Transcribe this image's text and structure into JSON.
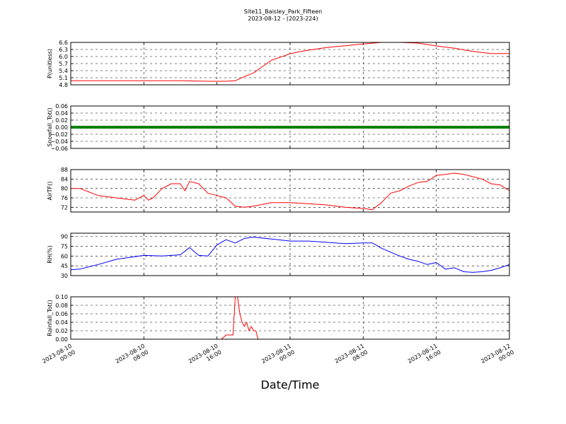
{
  "chart_data": {
    "type": "line",
    "title": [
      "Site11_Baisley_Park_Fifteen",
      "2023-08-12 - (2023-224)"
    ],
    "xlabel": "Date/Time",
    "x_range": [
      "2023-08-10 00:00",
      "2023-08-12 00:00"
    ],
    "x_ticks": [
      {
        "value": "2023-08-10 00:00",
        "label": [
          "2023-08-10",
          "00:00"
        ]
      },
      {
        "value": "2023-08-10 08:00",
        "label": [
          "2023-08-10",
          "08:00"
        ]
      },
      {
        "value": "2023-08-10 16:00",
        "label": [
          "2023-08-10",
          "16:00"
        ]
      },
      {
        "value": "2023-08-11 00:00",
        "label": [
          "2023-08-11",
          "00:00"
        ]
      },
      {
        "value": "2023-08-11 08:00",
        "label": [
          "2023-08-11",
          "08:00"
        ]
      },
      {
        "value": "2023-08-11 16:00",
        "label": [
          "2023-08-11",
          "16:00"
        ]
      },
      {
        "value": "2023-08-12 00:00",
        "label": [
          "2023-08-12",
          "00:00"
        ]
      }
    ],
    "grid": true,
    "panels": [
      {
        "ylabel": "P(unitless)",
        "color": "#ff0000",
        "ylim": [
          4.8,
          6.6
        ],
        "yticks": [
          "4.8",
          "5.1",
          "5.4",
          "5.7",
          "6.0",
          "6.3",
          "6.6"
        ],
        "series": {
          "x": [
            "2023-08-10 00:00",
            "2023-08-10 03:00",
            "2023-08-10 06:00",
            "2023-08-10 09:00",
            "2023-08-10 12:00",
            "2023-08-10 15:00",
            "2023-08-10 17:00",
            "2023-08-10 18:00",
            "2023-08-10 19:00",
            "2023-08-10 20:00",
            "2023-08-10 21:00",
            "2023-08-10 22:00",
            "2023-08-10 23:00",
            "2023-08-11 00:00",
            "2023-08-11 01:00",
            "2023-08-11 02:00",
            "2023-08-11 04:00",
            "2023-08-11 06:00",
            "2023-08-11 08:00",
            "2023-08-11 10:00",
            "2023-08-11 12:00",
            "2023-08-11 14:00",
            "2023-08-11 16:00",
            "2023-08-11 18:00",
            "2023-08-11 20:00",
            "2023-08-11 22:00",
            "2023-08-12 00:00"
          ],
          "y": [
            4.97,
            4.97,
            4.97,
            4.97,
            4.97,
            4.95,
            4.95,
            4.97,
            5.15,
            5.3,
            5.58,
            5.85,
            5.98,
            6.12,
            6.2,
            6.27,
            6.38,
            6.46,
            6.53,
            6.6,
            6.6,
            6.57,
            6.45,
            6.35,
            6.22,
            6.13,
            6.13
          ]
        }
      },
      {
        "ylabel": "Snowfall_Tot()",
        "color": "#008000",
        "ylim": [
          -0.06,
          0.06
        ],
        "yticks": [
          "−0.06",
          "−0.04",
          "−0.02",
          "0.00",
          "0.02",
          "0.04",
          "0.06"
        ],
        "series": {
          "x": [
            "2023-08-10 00:00",
            "2023-08-12 00:00"
          ],
          "y": [
            0.0,
            0.0
          ]
        }
      },
      {
        "ylabel": "AirTF()",
        "color": "#ff0000",
        "ylim": [
          70,
          88
        ],
        "yticks": [
          "72",
          "76",
          "80",
          "84",
          "88"
        ],
        "series": {
          "x": [
            "2023-08-10 00:00",
            "2023-08-10 01:00",
            "2023-08-10 03:00",
            "2023-08-10 05:00",
            "2023-08-10 07:00",
            "2023-08-10 08:00",
            "2023-08-10 08:30",
            "2023-08-10 09:00",
            "2023-08-10 10:00",
            "2023-08-10 11:00",
            "2023-08-10 12:00",
            "2023-08-10 12:30",
            "2023-08-10 13:00",
            "2023-08-10 14:00",
            "2023-08-10 15:00",
            "2023-08-10 16:00",
            "2023-08-10 17:00",
            "2023-08-10 18:00",
            "2023-08-10 19:00",
            "2023-08-10 20:00",
            "2023-08-10 22:00",
            "2023-08-11 00:00",
            "2023-08-11 02:00",
            "2023-08-11 04:00",
            "2023-08-11 06:00",
            "2023-08-11 08:00",
            "2023-08-11 09:00",
            "2023-08-11 10:00",
            "2023-08-11 11:00",
            "2023-08-11 12:00",
            "2023-08-11 13:00",
            "2023-08-11 14:00",
            "2023-08-11 15:00",
            "2023-08-11 16:00",
            "2023-08-11 17:00",
            "2023-08-11 18:00",
            "2023-08-11 19:00",
            "2023-08-11 20:00",
            "2023-08-11 21:00",
            "2023-08-11 22:00",
            "2023-08-11 23:00",
            "2023-08-12 00:00"
          ],
          "y": [
            80,
            80,
            77,
            76,
            75,
            77,
            75,
            76,
            80,
            82,
            82,
            79,
            83,
            82,
            78,
            77,
            76,
            72.5,
            72,
            72.5,
            74,
            74,
            73.5,
            73,
            72,
            71.5,
            71,
            74,
            78,
            79,
            81,
            82.5,
            83,
            85.5,
            86,
            86.5,
            86,
            85,
            84,
            82,
            81.5,
            79
          ]
        }
      },
      {
        "ylabel": "RH(%)",
        "color": "#0000ff",
        "ylim": [
          30,
          95
        ],
        "yticks": [
          "30",
          "45",
          "60",
          "75",
          "90"
        ],
        "series": {
          "x": [
            "2023-08-10 00:00",
            "2023-08-10 01:00",
            "2023-08-10 03:00",
            "2023-08-10 05:00",
            "2023-08-10 07:00",
            "2023-08-10 08:00",
            "2023-08-10 10:00",
            "2023-08-10 12:00",
            "2023-08-10 13:00",
            "2023-08-10 14:00",
            "2023-08-10 15:00",
            "2023-08-10 16:00",
            "2023-08-10 17:00",
            "2023-08-10 18:00",
            "2023-08-10 19:00",
            "2023-08-10 20:00",
            "2023-08-10 22:00",
            "2023-08-11 00:00",
            "2023-08-11 02:00",
            "2023-08-11 04:00",
            "2023-08-11 06:00",
            "2023-08-11 08:00",
            "2023-08-11 09:00",
            "2023-08-11 10:00",
            "2023-08-11 11:00",
            "2023-08-11 12:00",
            "2023-08-11 13:00",
            "2023-08-11 14:00",
            "2023-08-11 15:00",
            "2023-08-11 16:00",
            "2023-08-11 17:00",
            "2023-08-11 18:00",
            "2023-08-11 19:00",
            "2023-08-11 20:00",
            "2023-08-11 21:00",
            "2023-08-11 22:00",
            "2023-08-11 23:00",
            "2023-08-12 00:00"
          ],
          "y": [
            39,
            40,
            47,
            55,
            59,
            61,
            60,
            62,
            73,
            61,
            60,
            77,
            85,
            80,
            87,
            89,
            86,
            83,
            83,
            81,
            79,
            80,
            80,
            72,
            66,
            60,
            55,
            52,
            47,
            50,
            40,
            42,
            36,
            35,
            36,
            38,
            42,
            47
          ]
        }
      },
      {
        "ylabel": "Rainfall_Tot()",
        "color": "#ff0000",
        "ylim": [
          0.0,
          0.1
        ],
        "yticks": [
          "0.00",
          "0.02",
          "0.04",
          "0.06",
          "0.08",
          "0.10"
        ],
        "series": {
          "x": [
            "2023-08-10 00:00",
            "2023-08-10 16:30",
            "2023-08-10 17:00",
            "2023-08-10 17:30",
            "2023-08-10 17:45",
            "2023-08-10 18:00",
            "2023-08-10 18:15",
            "2023-08-10 18:30",
            "2023-08-10 18:45",
            "2023-08-10 19:00",
            "2023-08-10 19:15",
            "2023-08-10 19:30",
            "2023-08-10 19:45",
            "2023-08-10 20:00",
            "2023-08-10 20:15",
            "2023-08-10 20:30",
            "2023-08-10 20:45",
            "2023-08-10 21:00",
            "2023-08-12 00:00"
          ],
          "y": [
            0.0,
            0.0,
            0.01,
            0.01,
            0.01,
            0.1,
            0.1,
            0.06,
            0.04,
            0.03,
            0.04,
            0.02,
            0.03,
            0.02,
            0.02,
            0.0,
            0.0,
            0.0,
            0.0
          ]
        }
      }
    ]
  }
}
